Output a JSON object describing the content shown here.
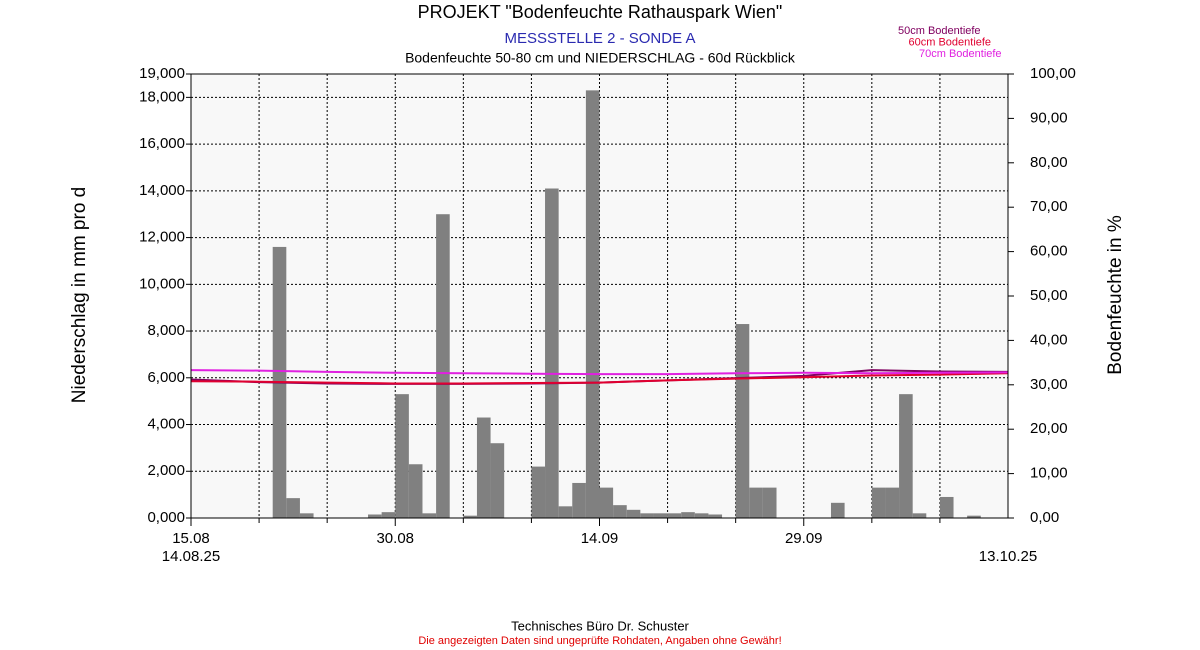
{
  "chart_data": {
    "type": "combo",
    "title": "PROJEKT \"Bodenfeuchte Rathauspark Wien\"",
    "subtitle": "MESSSTELLE 2 - SONDE A",
    "description": "Bodenfeuchte 50-80 cm und NIEDERSCHLAG - 60d Rückblick",
    "y_label": "Niederschlag in mm pro d",
    "y2_label": "Bodenfeuchte in %",
    "footer": "Technisches Büro Dr. Schuster",
    "disclaimer": "Die angezeigten Daten sind ungeprüfte Rohdaten, Angaben ohne Gewähr!",
    "grid": true,
    "xlim": [
      0,
      60
    ],
    "xticks": [
      {
        "value": 0,
        "label": "15.08"
      },
      {
        "value": 15,
        "label": "30.08"
      },
      {
        "value": 30,
        "label": "14.09"
      },
      {
        "value": 45,
        "label": "29.09"
      }
    ],
    "x_secondary_ticks": [
      {
        "value": 0,
        "label": "14.08.25"
      },
      {
        "value": 60,
        "label": "13.10.25"
      }
    ],
    "x_minor_ticks": [
      5,
      10,
      20,
      25,
      35,
      40,
      50,
      55
    ],
    "ylim": [
      0,
      19000
    ],
    "yticks": [
      {
        "value": 0,
        "label": "0,000"
      },
      {
        "value": 2000,
        "label": "2,000"
      },
      {
        "value": 4000,
        "label": "4,000"
      },
      {
        "value": 6000,
        "label": "6,000"
      },
      {
        "value": 8000,
        "label": "8,000"
      },
      {
        "value": 10000,
        "label": "10,000"
      },
      {
        "value": 12000,
        "label": "12,000"
      },
      {
        "value": 14000,
        "label": "14,000"
      },
      {
        "value": 16000,
        "label": "16,000"
      },
      {
        "value": 18000,
        "label": "18,000"
      },
      {
        "value": 19000,
        "label": "19,000"
      }
    ],
    "y2lim": [
      0,
      100
    ],
    "y2ticks": [
      {
        "value": 0,
        "label": "0,00"
      },
      {
        "value": 10,
        "label": "10,00"
      },
      {
        "value": 20,
        "label": "20,00"
      },
      {
        "value": 30,
        "label": "30,00"
      },
      {
        "value": 40,
        "label": "40,00"
      },
      {
        "value": 50,
        "label": "50,00"
      },
      {
        "value": 60,
        "label": "60,00"
      },
      {
        "value": 70,
        "label": "70,00"
      },
      {
        "value": 80,
        "label": "80,00"
      },
      {
        "value": 90,
        "label": "90,00"
      },
      {
        "value": 100,
        "label": "100,00"
      }
    ],
    "series": [
      {
        "type": "bar",
        "color": "#808080",
        "x": [
          6,
          7,
          8,
          13,
          14,
          15,
          16,
          17,
          18,
          20,
          21,
          22,
          25,
          26,
          27,
          28,
          29,
          30,
          31,
          32,
          33,
          34,
          35,
          36,
          37,
          38,
          40,
          41,
          42,
          47,
          50,
          51,
          52,
          53,
          55,
          57
        ],
        "values": [
          11600,
          850,
          200,
          150,
          250,
          5300,
          2300,
          200,
          13000,
          100,
          4300,
          3200,
          2200,
          14100,
          500,
          1500,
          18300,
          1300,
          550,
          350,
          200,
          200,
          200,
          250,
          200,
          150,
          8300,
          1300,
          1300,
          650,
          1300,
          1300,
          5300,
          200,
          900,
          100
        ]
      },
      {
        "type": "line",
        "axis": "y2",
        "name": "50cm Bodentiefe",
        "color": "#800060",
        "x": [
          0,
          5,
          10,
          15,
          20,
          25,
          30,
          35,
          40,
          45,
          50,
          55,
          60
        ],
        "values": [
          31.2,
          30.6,
          30.3,
          30.2,
          30.2,
          30.3,
          30.5,
          31.0,
          31.5,
          32.0,
          33.3,
          33.0,
          32.9
        ]
      },
      {
        "type": "line",
        "axis": "y2",
        "name": "60cm Bodentiefe",
        "color": "#e00030",
        "x": [
          0,
          5,
          10,
          15,
          20,
          25,
          30,
          35,
          40,
          45,
          50,
          55,
          60
        ],
        "values": [
          30.8,
          30.7,
          30.5,
          30.3,
          30.3,
          30.4,
          30.5,
          31.0,
          31.4,
          31.7,
          32.1,
          32.3,
          32.6
        ]
      },
      {
        "type": "line",
        "axis": "y2",
        "name": "70cm Bodentiefe",
        "color": "#e020e0",
        "x": [
          0,
          5,
          10,
          15,
          20,
          25,
          30,
          35,
          40,
          45,
          50,
          55,
          60
        ],
        "values": [
          33.3,
          33.2,
          32.9,
          32.7,
          32.6,
          32.5,
          32.4,
          32.4,
          32.6,
          32.7,
          32.6,
          32.7,
          32.8
        ]
      }
    ]
  }
}
